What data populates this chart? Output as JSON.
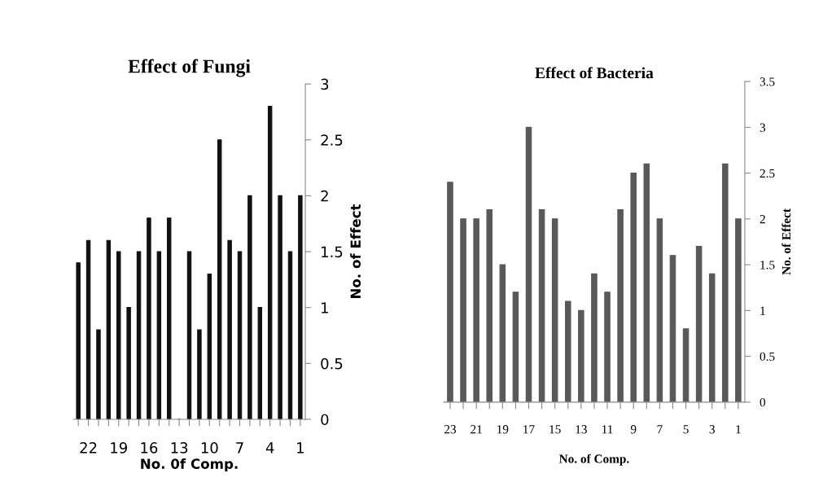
{
  "chart_data": [
    {
      "type": "bar",
      "title": "Effect of Fungi",
      "xlabel": "No. 0f Comp.",
      "ylabel": "No. of Effect",
      "categories": [
        null,
        "22",
        null,
        null,
        "19",
        null,
        null,
        "16",
        null,
        null,
        "13",
        null,
        null,
        "10",
        null,
        null,
        "7",
        null,
        null,
        "4",
        null,
        null,
        "1"
      ],
      "series": [
        {
          "color": "#111111",
          "values": [
            1.4,
            1.6,
            0.8,
            1.6,
            1.5,
            1.0,
            1.5,
            1.8,
            1.5,
            1.8,
            0,
            1.5,
            0.8,
            1.3,
            2.5,
            1.6,
            1.5,
            2.0,
            1.0,
            2.8,
            2.0,
            1.5,
            2.0
          ]
        }
      ],
      "ylim": [
        0,
        3
      ],
      "yticks": [
        0,
        0.5,
        1,
        1.5,
        2,
        2.5,
        3
      ],
      "grid": false,
      "legend": false
    },
    {
      "type": "bar",
      "title": "Effect of Bacteria",
      "xlabel": "No. of Comp.",
      "ylabel": "No. of Effect",
      "categories": [
        "23",
        null,
        "21",
        null,
        "19",
        null,
        "17",
        null,
        "15",
        null,
        "13",
        null,
        "11",
        null,
        "9",
        null,
        "7",
        null,
        "5",
        null,
        "3",
        null,
        "1"
      ],
      "series": [
        {
          "color": "#595959",
          "values": [
            2.4,
            2.0,
            2.0,
            2.1,
            1.5,
            1.2,
            3.0,
            2.1,
            2.0,
            1.1,
            1.0,
            1.4,
            1.2,
            2.1,
            2.5,
            2.6,
            2.0,
            1.6,
            0.8,
            1.7,
            1.4,
            2.6,
            2.0
          ]
        }
      ],
      "ylim": [
        0,
        3.5
      ],
      "yticks": [
        0,
        0.5,
        1,
        1.5,
        2,
        2.5,
        3,
        3.5
      ],
      "grid": false,
      "legend": false
    }
  ]
}
